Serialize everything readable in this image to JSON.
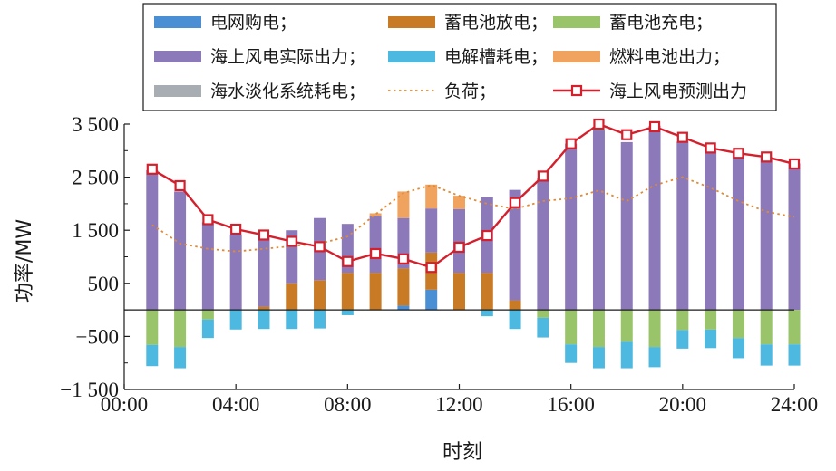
{
  "chart_data": {
    "type": "bar",
    "xlabel": "时刻",
    "ylabel": "功率/MW",
    "ylim": [
      -1500,
      3500
    ],
    "yticks": [
      -1500,
      -500,
      500,
      1500,
      2500,
      3500
    ],
    "ytick_labels": [
      "−1 500",
      "−500",
      "500",
      "1 500",
      "2 500",
      "3 500"
    ],
    "xlim": [
      0,
      24
    ],
    "xticks": [
      0,
      4,
      8,
      12,
      16,
      20,
      24
    ],
    "xtick_labels": [
      "00:00",
      "04:00",
      "08:00",
      "12:00",
      "16:00",
      "20:00",
      "24:00"
    ],
    "x": [
      1,
      2,
      3,
      4,
      5,
      6,
      7,
      8,
      9,
      10,
      11,
      12,
      13,
      14,
      15,
      16,
      17,
      18,
      19,
      20,
      21,
      22,
      23,
      24
    ],
    "grid": false,
    "legend_position": "top",
    "stacked_bars": [
      {
        "name": "电网购电；",
        "color": "#4a8fd4",
        "side": "positive",
        "values": [
          0,
          0,
          0,
          0,
          0,
          0,
          0,
          0,
          0,
          80,
          380,
          0,
          0,
          0,
          0,
          0,
          0,
          0,
          0,
          0,
          0,
          0,
          0,
          0
        ]
      },
      {
        "name": "蓄电池放电；",
        "color": "#c87a25",
        "side": "positive",
        "values": [
          0,
          0,
          0,
          0,
          60,
          500,
          560,
          700,
          700,
          700,
          700,
          700,
          700,
          180,
          0,
          0,
          0,
          0,
          0,
          0,
          0,
          0,
          0,
          0
        ]
      },
      {
        "name": "海上风电实际出力；",
        "color": "#8c79b9",
        "side": "positive",
        "values": [
          2630,
          2230,
          1650,
          1420,
          1350,
          1000,
          1170,
          920,
          1070,
          950,
          830,
          1200,
          1420,
          2080,
          2480,
          3130,
          3380,
          3160,
          3470,
          3170,
          3000,
          2960,
          2870,
          2760
        ]
      },
      {
        "name": "燃料电池出力；",
        "color": "#f0a25f",
        "side": "positive",
        "values": [
          0,
          0,
          0,
          0,
          0,
          0,
          0,
          0,
          50,
          500,
          450,
          250,
          0,
          0,
          0,
          0,
          0,
          0,
          0,
          0,
          0,
          0,
          0,
          0
        ]
      },
      {
        "name": "蓄电池充电；",
        "color": "#9ac46a",
        "side": "negative",
        "values": [
          -660,
          -700,
          -180,
          0,
          0,
          0,
          0,
          0,
          0,
          0,
          0,
          0,
          0,
          0,
          -150,
          -650,
          -700,
          -600,
          -700,
          -380,
          -370,
          -530,
          -650,
          -650
        ]
      },
      {
        "name": "电解槽耗电；",
        "color": "#4db8e0",
        "side": "negative",
        "values": [
          -400,
          -400,
          -350,
          -370,
          -360,
          -360,
          -350,
          -100,
          0,
          0,
          0,
          0,
          -120,
          -360,
          -370,
          -350,
          -400,
          -500,
          -380,
          -350,
          -350,
          -380,
          -400,
          -400
        ]
      },
      {
        "name": "海水淡化系统耗电；",
        "color": "#a8adb4",
        "side": "negative",
        "values": [
          0,
          0,
          0,
          0,
          0,
          0,
          0,
          0,
          0,
          0,
          0,
          0,
          0,
          0,
          0,
          0,
          0,
          0,
          0,
          0,
          0,
          0,
          0,
          0
        ]
      }
    ],
    "lines": [
      {
        "name": "负荷；",
        "color": "#e08a35",
        "style": "dotted",
        "x": [
          1,
          2,
          3,
          4,
          5,
          6,
          7,
          8,
          9,
          10,
          11,
          12,
          13,
          14,
          15,
          16,
          17,
          18,
          19,
          20,
          21,
          22,
          23,
          24
        ],
        "values": [
          1600,
          1250,
          1150,
          1100,
          1150,
          1200,
          1250,
          1380,
          1800,
          2200,
          2350,
          2150,
          2000,
          1900,
          2050,
          2100,
          2250,
          2050,
          2350,
          2500,
          2300,
          2050,
          1850,
          1750
        ]
      },
      {
        "name": "海上风电预测出力",
        "color": "#d4202c",
        "style": "solid-square-markers",
        "x": [
          1,
          2,
          3,
          4,
          5,
          6,
          7,
          8,
          9,
          10,
          11,
          12,
          13,
          14,
          15,
          16,
          17,
          18,
          19,
          20,
          21,
          22,
          23,
          24
        ],
        "values": [
          2650,
          2340,
          1700,
          1520,
          1410,
          1290,
          1190,
          910,
          1060,
          960,
          800,
          1180,
          1400,
          2020,
          2520,
          3130,
          3500,
          3300,
          3450,
          3250,
          3050,
          2950,
          2880,
          2750
        ]
      }
    ]
  }
}
